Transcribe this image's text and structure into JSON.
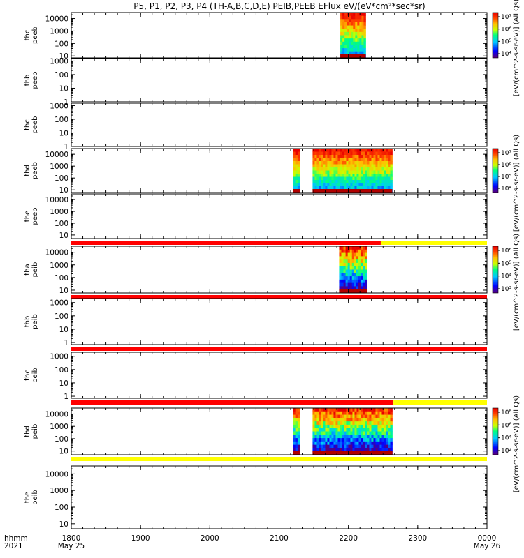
{
  "title": "P5, P1, P2, P3, P4 (TH-A,B,C,D,E) PEIB,PEEB EFlux eV/(eV*cm²*sec*sr)",
  "colors": {
    "bar_red": "#ff0000",
    "bar_yellow": "#ffff00",
    "spectro": [
      "#5a0078",
      "#0000ff",
      "#00c8ff",
      "#00ff80",
      "#c8ff00",
      "#ffc000",
      "#ff4000",
      "#e80000"
    ]
  },
  "x_axis": {
    "range": [
      "1800",
      "0000"
    ],
    "ticks": [
      "1800",
      "1900",
      "2000",
      "2100",
      "2200",
      "2300",
      "0000"
    ],
    "date_labels": [
      "May 25",
      "May 26"
    ],
    "left_labels": [
      "hhmm",
      "2021"
    ]
  },
  "colorbar_labels": [
    "[eV/(cm^2-s-sr-eV)] (All Qs)",
    "[eV/(cm^2-s-sr-eV)] (All Qs)",
    "[eV/(cm^2-s-sr-eV)] (All Qs)",
    "[eV/(cm^2-s-sr-eV)] (All Qs)"
  ],
  "chart_data": [
    {
      "type": "heatmap",
      "probe": "thc",
      "label": [
        "thc",
        "peeb"
      ],
      "yscale": "log",
      "yticks": [
        "10",
        "100",
        "1000",
        "10000"
      ],
      "yrange": [
        7,
        30000
      ],
      "colorbar": {
        "ticks": [
          "10⁴",
          "10⁵",
          "10⁶",
          "10⁷"
        ]
      },
      "data_spans": [
        [
          "2153",
          "2215"
        ]
      ]
    },
    {
      "type": "heatmap",
      "probe": "thb",
      "label": [
        "thb",
        "peeb"
      ],
      "yscale": "log",
      "yticks": [
        "1",
        "10",
        "100",
        "1000"
      ],
      "yrange": [
        1,
        1500
      ],
      "data_spans": []
    },
    {
      "type": "heatmap",
      "probe": "thc",
      "label": [
        "thc",
        "peeb"
      ],
      "yscale": "log",
      "yticks": [
        "1",
        "10",
        "100",
        "1000"
      ],
      "yrange": [
        1,
        1500
      ],
      "data_spans": []
    },
    {
      "type": "heatmap",
      "probe": "thd",
      "label": [
        "thd",
        "peeb"
      ],
      "yscale": "log",
      "yticks": [
        "10",
        "100",
        "1000",
        "10000"
      ],
      "yrange": [
        6,
        30000
      ],
      "colorbar": {
        "ticks": [
          "10⁴",
          "10⁵",
          "10⁶",
          "10⁷"
        ]
      },
      "data_spans": [
        [
          "2112",
          "2118"
        ],
        [
          "2129",
          "2238"
        ]
      ]
    },
    {
      "type": "heatmap",
      "probe": "the",
      "label": [
        "the",
        "peeb"
      ],
      "yscale": "log",
      "yticks": [
        "10",
        "100",
        "1000",
        "10000"
      ],
      "yrange": [
        5,
        30000
      ],
      "data_spans": [],
      "bar_below": [
        {
          "from": "1800",
          "to": "2228",
          "color": "red"
        },
        {
          "from": "2228",
          "to": "0000",
          "color": "yellow"
        }
      ]
    },
    {
      "type": "heatmap",
      "probe": "tha",
      "label": [
        "tha",
        "peib"
      ],
      "yscale": "log",
      "yticks": [
        "10",
        "100",
        "1000",
        "10000"
      ],
      "yrange": [
        6,
        30000
      ],
      "colorbar": {
        "ticks": [
          "10³",
          "10⁴",
          "10⁵",
          "10⁶"
        ]
      },
      "data_spans": [
        [
          "2152",
          "2216"
        ]
      ],
      "bar_below": [
        {
          "from": "1800",
          "to": "0000",
          "color": "red"
        }
      ]
    },
    {
      "type": "heatmap",
      "probe": "thb",
      "label": [
        "thb",
        "peib"
      ],
      "yscale": "log",
      "yticks": [
        "1",
        "10",
        "100",
        "1000"
      ],
      "yrange": [
        0.7,
        2000
      ],
      "data_spans": [],
      "bar_below": [
        {
          "from": "1800",
          "to": "0000",
          "color": "red"
        }
      ]
    },
    {
      "type": "heatmap",
      "probe": "thc",
      "label": [
        "thc",
        "peib"
      ],
      "yscale": "log",
      "yticks": [
        "1",
        "10",
        "100",
        "1000"
      ],
      "yrange": [
        0.7,
        2000
      ],
      "data_spans": [],
      "bar_below": [
        {
          "from": "1800",
          "to": "2239",
          "color": "red"
        },
        {
          "from": "2239",
          "to": "0000",
          "color": "yellow"
        }
      ]
    },
    {
      "type": "heatmap",
      "probe": "thd",
      "label": [
        "thd",
        "peib"
      ],
      "yscale": "log",
      "yticks": [
        "10",
        "100",
        "1000",
        "10000"
      ],
      "yrange": [
        5,
        30000
      ],
      "colorbar": {
        "ticks": [
          "10²",
          "10⁴",
          "10⁶",
          "10⁸"
        ]
      },
      "data_spans": [
        [
          "2112",
          "2118"
        ],
        [
          "2129",
          "2238"
        ]
      ],
      "bar_below": [
        {
          "from": "1800",
          "to": "0000",
          "color": "yellow"
        }
      ]
    },
    {
      "type": "heatmap",
      "probe": "the",
      "label": [
        "the",
        "peib"
      ],
      "yscale": "log",
      "yticks": [
        "10",
        "100",
        "1000",
        "10000"
      ],
      "yrange": [
        5,
        30000
      ],
      "data_spans": []
    }
  ]
}
